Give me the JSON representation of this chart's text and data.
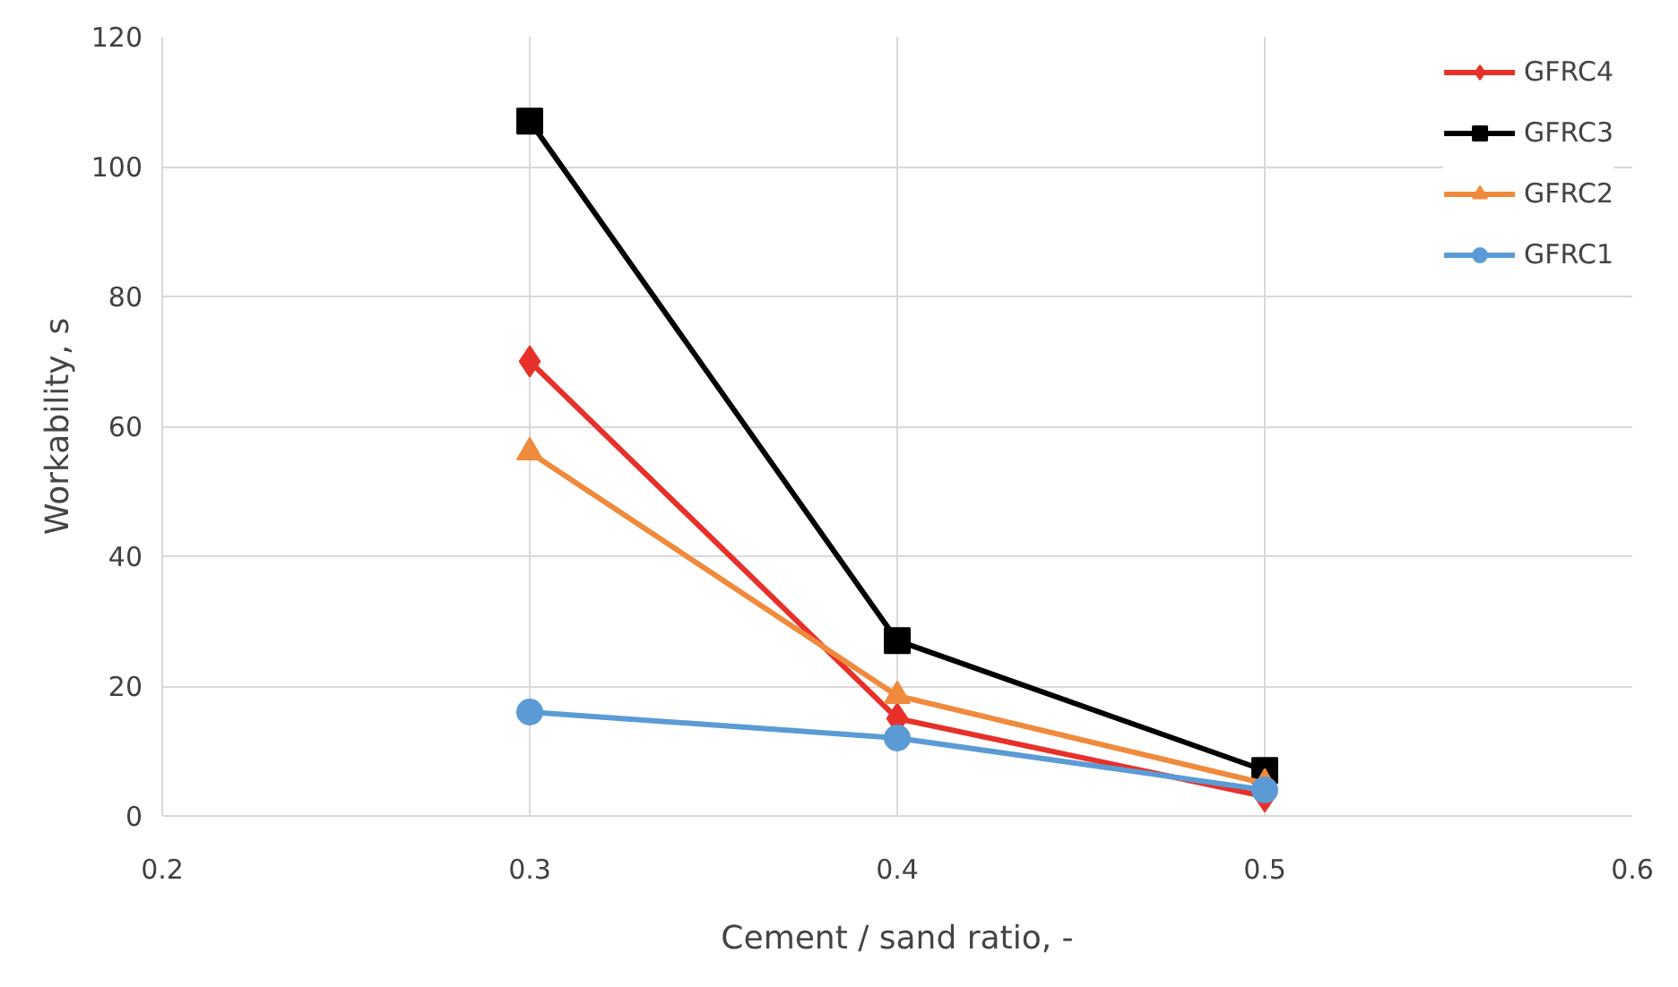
{
  "chart_data": {
    "type": "line",
    "xlabel": "Cement / sand ratio, -",
    "ylabel": "Workability, s",
    "x": [
      0.3,
      0.4,
      0.5
    ],
    "xlim": [
      0.2,
      0.6
    ],
    "xticks": [
      0.2,
      0.3,
      0.4,
      0.5,
      0.6
    ],
    "ylim": [
      0,
      120
    ],
    "yticks": [
      0,
      20,
      40,
      60,
      80,
      100,
      120
    ],
    "grid": true,
    "legend": "top right",
    "line_style": "solid",
    "series": [
      {
        "name": "GFRC4",
        "color": "#e8302a",
        "marker": "diamond",
        "values": [
          70,
          15,
          3
        ]
      },
      {
        "name": "GFRC3",
        "color": "#000000",
        "marker": "square",
        "values": [
          107,
          27,
          7
        ]
      },
      {
        "name": "GFRC2",
        "color": "#f08a3c",
        "marker": "triangle",
        "values": [
          56,
          18.5,
          5
        ]
      },
      {
        "name": "GFRC1",
        "color": "#5b9bd5",
        "marker": "circle",
        "values": [
          16,
          12,
          4
        ]
      }
    ]
  }
}
